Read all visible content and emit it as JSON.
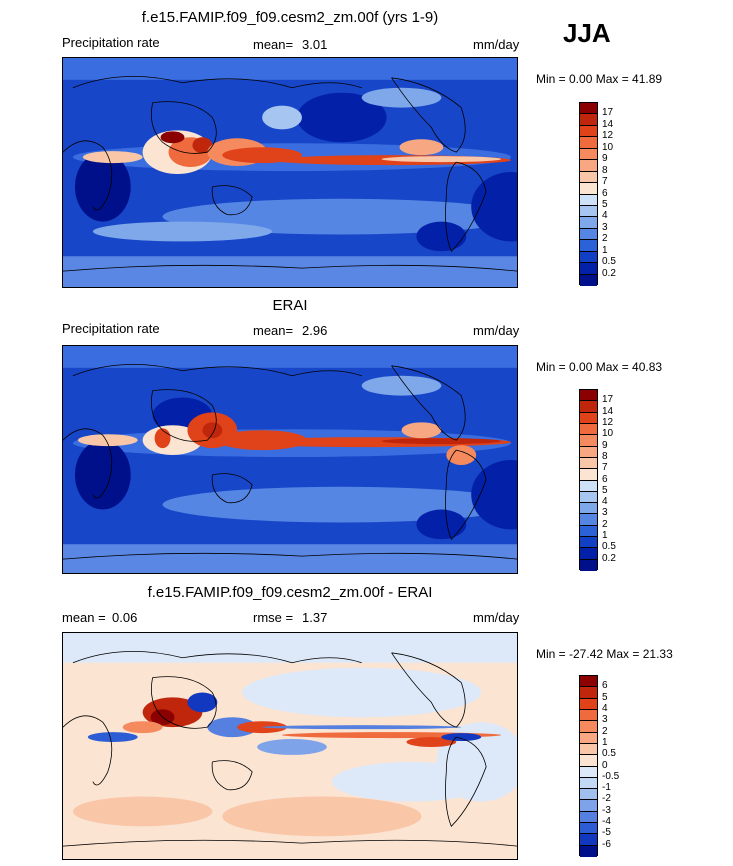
{
  "season": "JJA",
  "panels": [
    {
      "title": "f.e15.FAMIP.f09_f09.cesm2_zm.00f (yrs 1-9)",
      "left_label": "Precipitation rate",
      "stat_label": "mean=",
      "stat_value": "3.01",
      "units": "mm/day",
      "minmax": "Min =   0.00 Max =  41.89"
    },
    {
      "title": "ERAI",
      "left_label": "Precipitation rate",
      "stat_label": "mean=",
      "stat_value": "2.96",
      "units": "mm/day",
      "minmax": "Min =   0.00 Max =  40.83"
    },
    {
      "title": "f.e15.FAMIP.f09_f09.cesm2_zm.00f - ERAI",
      "left_label": "mean =",
      "left_value": "0.06",
      "stat_label": "rmse =",
      "stat_value": "1.37",
      "units": "mm/day",
      "minmax": "Min = -27.42 Max =  21.33"
    }
  ],
  "chart_data": [
    {
      "type": "heatmap",
      "title": "f.e15.FAMIP.f09_f09.cesm2_zm.00f (yrs 1-9)",
      "variable": "Precipitation rate",
      "units": "mm/day",
      "mean": 3.01,
      "min": 0.0,
      "max": 41.89,
      "colorbar_levels": [
        "17",
        "14",
        "12",
        "10",
        "9",
        "8",
        "7",
        "6",
        "5",
        "4",
        "3",
        "2",
        "1",
        "0.5",
        "0.2"
      ],
      "colorbar_colors": [
        "#8b0000",
        "#c0260c",
        "#e0421a",
        "#ef6a3c",
        "#f48a5e",
        "#f7a883",
        "#f9c6a8",
        "#fbe4d2",
        "#cfe1f7",
        "#a6c6f1",
        "#7ea8ea",
        "#5586e3",
        "#2c62d8",
        "#1240c4",
        "#0320a8",
        "#00108a"
      ]
    },
    {
      "type": "heatmap",
      "title": "ERAI",
      "variable": "Precipitation rate",
      "units": "mm/day",
      "mean": 2.96,
      "min": 0.0,
      "max": 40.83,
      "colorbar_levels": [
        "17",
        "14",
        "12",
        "10",
        "9",
        "8",
        "7",
        "6",
        "5",
        "4",
        "3",
        "2",
        "1",
        "0.5",
        "0.2"
      ],
      "colorbar_colors": [
        "#8b0000",
        "#c0260c",
        "#e0421a",
        "#ef6a3c",
        "#f48a5e",
        "#f7a883",
        "#f9c6a8",
        "#fbe4d2",
        "#cfe1f7",
        "#a6c6f1",
        "#7ea8ea",
        "#5586e3",
        "#2c62d8",
        "#1240c4",
        "#0320a8",
        "#00108a"
      ]
    },
    {
      "type": "heatmap",
      "title": "f.e15.FAMIP.f09_f09.cesm2_zm.00f - ERAI",
      "units": "mm/day",
      "mean": 0.06,
      "rmse": 1.37,
      "min": -27.42,
      "max": 21.33,
      "colorbar_levels": [
        "6",
        "5",
        "4",
        "3",
        "2",
        "1",
        "0.5",
        "0",
        "-0.5",
        "-1",
        "-2",
        "-3",
        "-4",
        "-5",
        "-6"
      ],
      "colorbar_colors": [
        "#8b0000",
        "#c0260c",
        "#e0421a",
        "#ef6a3c",
        "#f48a5e",
        "#f7a883",
        "#f9c6a8",
        "#fbe4d2",
        "#dde9f9",
        "#c3d8f4",
        "#a0bfef",
        "#7ea3e8",
        "#5580df",
        "#2c5dd4",
        "#1238bf",
        "#00108a"
      ]
    }
  ]
}
